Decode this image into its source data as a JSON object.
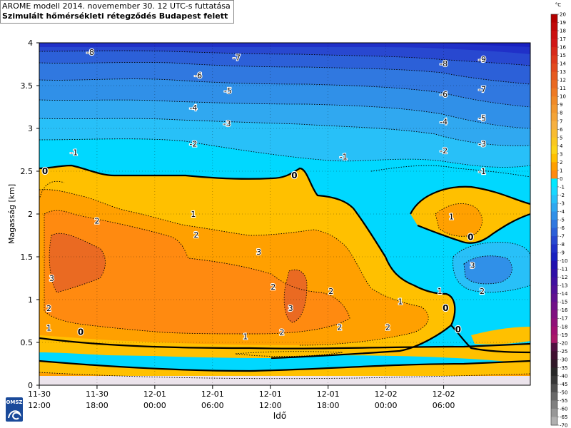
{
  "header": {
    "title_line1": "AROME modell 2014. novemember 30. 12 UTC-s futtatása",
    "title_line2": "Szimulált hőmérsékleti rétegződés Budapest felett"
  },
  "logo": {
    "text": "OMSZ"
  },
  "chart_data": {
    "type": "heatmap",
    "xlabel": "Idő",
    "ylabel": "Magasság [km]",
    "ylim": [
      0,
      4
    ],
    "xlim_hours": [
      0,
      51
    ],
    "grid": true,
    "yticks": [
      0,
      0.5,
      1,
      1.5,
      2,
      2.5,
      3,
      3.5,
      4
    ],
    "xticks": [
      {
        "h": 0,
        "date": "11-30",
        "time": "12:00"
      },
      {
        "h": 6,
        "date": "11-30",
        "time": "18:00"
      },
      {
        "h": 12,
        "date": "12-01",
        "time": "00:00"
      },
      {
        "h": 18,
        "date": "12-01",
        "time": "06:00"
      },
      {
        "h": 24,
        "date": "12-01",
        "time": "12:00"
      },
      {
        "h": 30,
        "date": "12-01",
        "time": "18:00"
      },
      {
        "h": 36,
        "date": "12-02",
        "time": "00:00"
      },
      {
        "h": 42,
        "date": "12-02",
        "time": "06:00"
      }
    ],
    "colorbar": {
      "unit": "°C",
      "levels": [
        "20",
        "19",
        "18",
        "17",
        "16",
        "15",
        "14",
        "13",
        "12",
        "11",
        "10",
        "9",
        "8",
        "7",
        "6",
        "5",
        "4",
        "3",
        "2",
        "1",
        "0",
        "-1",
        "-2",
        "-3",
        "-4",
        "-5",
        "-6",
        "-7",
        "-8",
        "-9",
        "-10",
        "-11",
        "-12",
        "-13",
        "-14",
        "-15",
        "-16",
        "-17",
        "-18",
        "-19",
        "-20",
        "-25",
        "-30",
        "-35",
        "-40",
        "-45",
        "-50",
        "-55",
        "-60",
        "-65",
        "-70"
      ],
      "colors": [
        "#b40000",
        "#c00808",
        "#cc1010",
        "#d21818",
        "#d82a1a",
        "#de3a1c",
        "#e24a1e",
        "#e65a20",
        "#ea6a22",
        "#ee7a24",
        "#f08a28",
        "#f29830",
        "#f4a438",
        "#f6b040",
        "#f8bc30",
        "#fac820",
        "#fcd418",
        "#ffc000",
        "#ffa000",
        "#ff8a10",
        "#00e8ff",
        "#18d8ff",
        "#28c0f8",
        "#30a8f0",
        "#3090e8",
        "#3078e0",
        "#2c60d8",
        "#2848d0",
        "#2030c8",
        "#1820c0",
        "#2010b0",
        "#3010a8",
        "#4010a0",
        "#501098",
        "#601090",
        "#701088",
        "#801080",
        "#901078",
        "#a01070",
        "#a81868",
        "#501040",
        "#401030",
        "#301828",
        "#282828",
        "#383838",
        "#505050",
        "#686868",
        "#808080",
        "#989898",
        "#b0b0b0"
      ]
    },
    "contour_labels": [
      {
        "v": "-8",
        "h": 5.3,
        "km": 3.89
      },
      {
        "v": "-7",
        "h": 20.5,
        "km": 3.83
      },
      {
        "v": "-6",
        "h": 16.5,
        "km": 3.62
      },
      {
        "v": "-5",
        "h": 19.6,
        "km": 3.44
      },
      {
        "v": "-4",
        "h": 16.0,
        "km": 3.24
      },
      {
        "v": "-3",
        "h": 19.5,
        "km": 3.06
      },
      {
        "v": "-2",
        "h": 16.0,
        "km": 2.82
      },
      {
        "v": "-1",
        "h": 3.6,
        "km": 2.72
      },
      {
        "v": "-1",
        "h": 31.6,
        "km": 2.67
      },
      {
        "v": "0",
        "h": 0.6,
        "km": 2.5
      },
      {
        "v": "0",
        "h": 26.5,
        "km": 2.45
      },
      {
        "v": "1",
        "h": 16.0,
        "km": 2.0
      },
      {
        "v": "2",
        "h": 6.0,
        "km": 1.92
      },
      {
        "v": "2",
        "h": 16.3,
        "km": 1.76
      },
      {
        "v": "3",
        "h": 1.3,
        "km": 1.25
      },
      {
        "v": "3",
        "h": 22.8,
        "km": 1.56
      },
      {
        "v": "2",
        "h": 24.3,
        "km": 1.15
      },
      {
        "v": "3",
        "h": 26.1,
        "km": 0.9
      },
      {
        "v": "2",
        "h": 30.3,
        "km": 1.1
      },
      {
        "v": "1",
        "h": 37.5,
        "km": 0.98
      },
      {
        "v": "2",
        "h": 1.0,
        "km": 0.9
      },
      {
        "v": "1",
        "h": 1.0,
        "km": 0.67
      },
      {
        "v": "0",
        "h": 4.3,
        "km": 0.62
      },
      {
        "v": "1",
        "h": 21.4,
        "km": 0.57
      },
      {
        "v": "2",
        "h": 25.2,
        "km": 0.62
      },
      {
        "v": "2",
        "h": 31.2,
        "km": 0.68
      },
      {
        "v": "2",
        "h": 36.2,
        "km": 0.68
      },
      {
        "v": "0",
        "h": 42.2,
        "km": 0.9
      },
      {
        "v": "0",
        "h": 43.5,
        "km": 0.65
      },
      {
        "v": "1",
        "h": 41.6,
        "km": 1.1
      },
      {
        "v": "1",
        "h": 42.8,
        "km": 1.97
      },
      {
        "v": "0",
        "h": 44.8,
        "km": 1.73
      },
      {
        "v": "3",
        "h": 45.0,
        "km": 1.4
      },
      {
        "v": "2",
        "h": 46.0,
        "km": 1.1
      },
      {
        "v": "-8",
        "h": 42.0,
        "km": 3.76
      },
      {
        "v": "-9",
        "h": 46.0,
        "km": 3.81
      },
      {
        "v": "-6",
        "h": 42.0,
        "km": 3.4
      },
      {
        "v": "-7",
        "h": 46.0,
        "km": 3.46
      },
      {
        "v": "-4",
        "h": 42.0,
        "km": 3.08
      },
      {
        "v": "-5",
        "h": 46.0,
        "km": 3.12
      },
      {
        "v": "-2",
        "h": 42.0,
        "km": 2.74
      },
      {
        "v": "-3",
        "h": 46.0,
        "km": 2.82
      },
      {
        "v": "-1",
        "h": 46.0,
        "km": 2.5
      }
    ]
  }
}
